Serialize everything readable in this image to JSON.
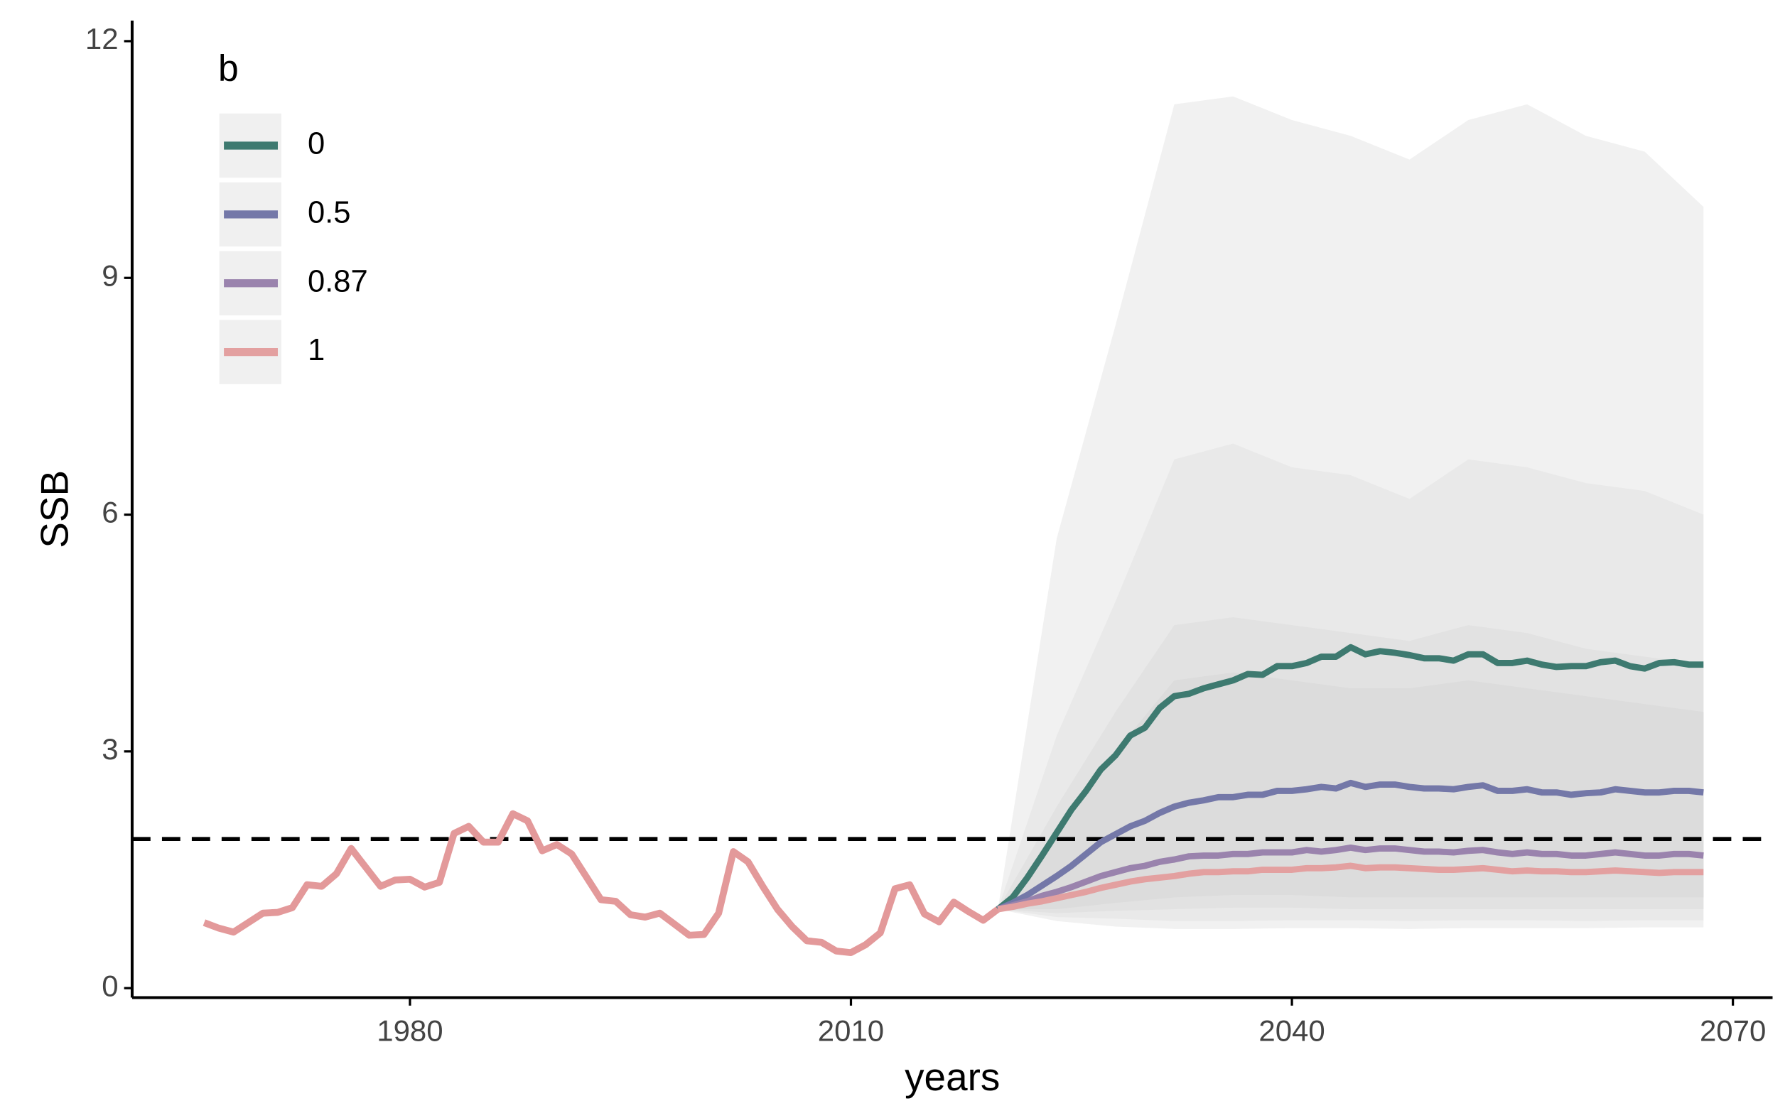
{
  "chart_data": {
    "type": "line",
    "xlabel": "years",
    "ylabel": "SSB",
    "xlim": [
      1961.1,
      2072.7
    ],
    "ylim": [
      -0.12,
      12.26
    ],
    "xticks": [
      1980,
      2010,
      2040,
      2070
    ],
    "yticks": [
      0,
      3,
      6,
      9,
      12
    ],
    "grid": false,
    "legend_title": "b",
    "legend_position": "top-left",
    "reference_line": {
      "value": 1.89,
      "style": "dashed",
      "color": "#000000"
    },
    "history": {
      "color": "#e3999a",
      "x": [
        1966,
        1967,
        1968,
        1969,
        1970,
        1971,
        1972,
        1973,
        1974,
        1975,
        1976,
        1977,
        1978,
        1979,
        1980,
        1981,
        1982,
        1983,
        1984,
        1985,
        1986,
        1987,
        1988,
        1989,
        1990,
        1991,
        1992,
        1993,
        1994,
        1995,
        1996,
        1997,
        1998,
        1999,
        2000,
        2001,
        2002,
        2003,
        2004,
        2005,
        2006,
        2007,
        2008,
        2009,
        2010,
        2011,
        2012,
        2013,
        2014,
        2015,
        2016,
        2017,
        2018,
        2019,
        2020
      ],
      "values": [
        0.83,
        0.76,
        0.71,
        0.83,
        0.95,
        0.96,
        1.02,
        1.31,
        1.29,
        1.45,
        1.77,
        1.53,
        1.29,
        1.37,
        1.38,
        1.28,
        1.34,
        1.96,
        2.05,
        1.85,
        1.85,
        2.21,
        2.12,
        1.74,
        1.82,
        1.7,
        1.41,
        1.12,
        1.1,
        0.93,
        0.9,
        0.95,
        0.81,
        0.67,
        0.68,
        0.95,
        1.73,
        1.6,
        1.29,
        1.0,
        0.78,
        0.6,
        0.58,
        0.47,
        0.45,
        0.55,
        0.7,
        1.26,
        1.31,
        0.94,
        0.84,
        1.09,
        0.97,
        0.86,
        1.0
      ]
    },
    "x": [
      2020,
      2021,
      2022,
      2023,
      2024,
      2025,
      2026,
      2027,
      2028,
      2029,
      2030,
      2031,
      2032,
      2033,
      2034,
      2035,
      2036,
      2037,
      2038,
      2039,
      2040,
      2041,
      2042,
      2043,
      2044,
      2045,
      2046,
      2047,
      2048,
      2049,
      2050,
      2051,
      2052,
      2053,
      2054,
      2055,
      2056,
      2057,
      2058,
      2059,
      2060,
      2061,
      2062,
      2063,
      2064,
      2065,
      2066,
      2067,
      2068
    ],
    "series": [
      {
        "name": "0",
        "color": "#3e7a70",
        "values": [
          1.0,
          1.15,
          1.4,
          1.68,
          1.97,
          2.26,
          2.5,
          2.77,
          2.95,
          3.2,
          3.3,
          3.55,
          3.7,
          3.73,
          3.8,
          3.85,
          3.9,
          3.98,
          3.97,
          4.08,
          4.08,
          4.12,
          4.2,
          4.2,
          4.32,
          4.23,
          4.27,
          4.25,
          4.22,
          4.18,
          4.18,
          4.15,
          4.23,
          4.23,
          4.12,
          4.12,
          4.15,
          4.1,
          4.07,
          4.08,
          4.08,
          4.13,
          4.15,
          4.08,
          4.05,
          4.12,
          4.13,
          4.1,
          4.1
        ]
      },
      {
        "name": "0.5",
        "color": "#7478a8",
        "values": [
          1.0,
          1.08,
          1.18,
          1.3,
          1.42,
          1.55,
          1.7,
          1.85,
          1.95,
          2.05,
          2.12,
          2.22,
          2.3,
          2.35,
          2.38,
          2.42,
          2.42,
          2.45,
          2.45,
          2.5,
          2.5,
          2.52,
          2.55,
          2.53,
          2.6,
          2.55,
          2.58,
          2.58,
          2.55,
          2.53,
          2.53,
          2.52,
          2.55,
          2.57,
          2.5,
          2.5,
          2.52,
          2.48,
          2.48,
          2.45,
          2.47,
          2.48,
          2.52,
          2.5,
          2.48,
          2.48,
          2.5,
          2.5,
          2.48
        ]
      },
      {
        "name": "0.87",
        "color": "#9a83ad",
        "values": [
          1.0,
          1.05,
          1.1,
          1.17,
          1.22,
          1.28,
          1.35,
          1.42,
          1.47,
          1.52,
          1.55,
          1.6,
          1.63,
          1.67,
          1.68,
          1.68,
          1.7,
          1.7,
          1.72,
          1.72,
          1.72,
          1.75,
          1.73,
          1.75,
          1.78,
          1.75,
          1.77,
          1.77,
          1.75,
          1.73,
          1.73,
          1.72,
          1.74,
          1.75,
          1.72,
          1.7,
          1.72,
          1.7,
          1.7,
          1.68,
          1.68,
          1.7,
          1.72,
          1.7,
          1.68,
          1.68,
          1.7,
          1.7,
          1.68
        ]
      },
      {
        "name": "1",
        "color": "#e3a0a0",
        "values": [
          1.0,
          1.03,
          1.07,
          1.1,
          1.14,
          1.18,
          1.22,
          1.27,
          1.31,
          1.35,
          1.38,
          1.4,
          1.42,
          1.45,
          1.47,
          1.47,
          1.48,
          1.48,
          1.5,
          1.5,
          1.5,
          1.52,
          1.52,
          1.53,
          1.55,
          1.52,
          1.53,
          1.53,
          1.52,
          1.51,
          1.5,
          1.5,
          1.51,
          1.52,
          1.5,
          1.48,
          1.49,
          1.48,
          1.48,
          1.47,
          1.47,
          1.48,
          1.49,
          1.48,
          1.47,
          1.46,
          1.47,
          1.47,
          1.47
        ]
      }
    ],
    "bands": {
      "x": [
        2020,
        2024,
        2028,
        2032,
        2036,
        2040,
        2044,
        2048,
        2052,
        2056,
        2060,
        2064,
        2068
      ],
      "levels": [
        {
          "color": "#f1f1f1",
          "upper": [
            1.0,
            5.7,
            8.4,
            11.2,
            11.3,
            11.0,
            10.8,
            10.5,
            11.0,
            11.2,
            10.8,
            10.6,
            9.9
          ],
          "lower": [
            1.0,
            0.85,
            0.78,
            0.75,
            0.75,
            0.76,
            0.76,
            0.75,
            0.76,
            0.76,
            0.76,
            0.77,
            0.77
          ]
        },
        {
          "color": "#e9e9e9",
          "upper": [
            1.0,
            3.2,
            4.9,
            6.7,
            6.9,
            6.6,
            6.5,
            6.2,
            6.7,
            6.6,
            6.4,
            6.3,
            6.0
          ],
          "lower": [
            1.0,
            0.9,
            0.88,
            0.85,
            0.85,
            0.86,
            0.86,
            0.85,
            0.86,
            0.86,
            0.85,
            0.86,
            0.86
          ]
        },
        {
          "color": "#e2e2e2",
          "upper": [
            1.0,
            2.3,
            3.5,
            4.6,
            4.7,
            4.6,
            4.5,
            4.4,
            4.6,
            4.5,
            4.3,
            4.2,
            4.1
          ],
          "lower": [
            1.0,
            0.95,
            0.98,
            1.0,
            1.02,
            1.02,
            1.0,
            1.0,
            1.0,
            1.0,
            1.0,
            1.0,
            1.0
          ]
        },
        {
          "color": "#dcdcdc",
          "upper": [
            1.0,
            1.9,
            3.0,
            3.9,
            4.0,
            3.9,
            3.8,
            3.8,
            3.9,
            3.8,
            3.7,
            3.6,
            3.5
          ],
          "lower": [
            1.0,
            1.0,
            1.08,
            1.15,
            1.18,
            1.18,
            1.15,
            1.15,
            1.15,
            1.15,
            1.15,
            1.15,
            1.15
          ]
        }
      ]
    }
  }
}
